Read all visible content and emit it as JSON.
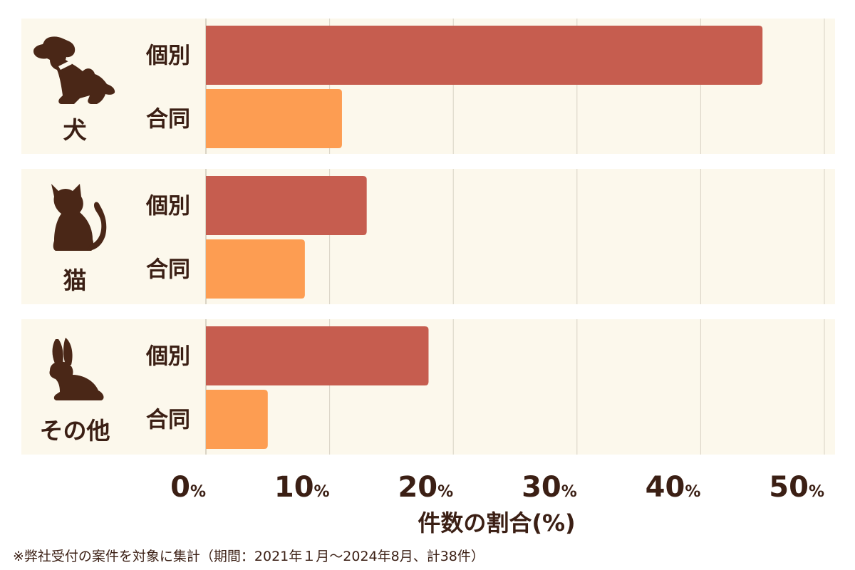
{
  "chart_data": {
    "type": "bar",
    "orientation": "horizontal",
    "groups": [
      {
        "name": "犬",
        "icon": "dog-icon"
      },
      {
        "name": "猫",
        "icon": "cat-icon"
      },
      {
        "name": "その他",
        "icon": "rabbit-icon"
      }
    ],
    "series": [
      {
        "name": "個別",
        "values": [
          45,
          13,
          18
        ],
        "color": "#c65d4f"
      },
      {
        "name": "合同",
        "values": [
          11,
          8,
          5
        ],
        "color": "#fd9d52"
      }
    ],
    "xlim": [
      0,
      50
    ],
    "xticks": [
      0,
      10,
      20,
      30,
      40,
      50
    ],
    "tick_unit": "%",
    "xlabel": "件数の割合(%)",
    "grid": true
  },
  "colors": {
    "panel_bg": "#fcf8ec",
    "grid": "#d8d2c4",
    "text": "#3b1f14",
    "icon": "#4a2717"
  },
  "footnote": "※弊社受付の案件を対象に集計（期間：2021年１月〜2024年8月、計38件）"
}
